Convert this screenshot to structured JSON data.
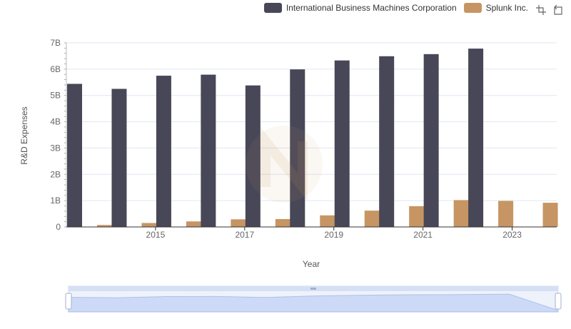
{
  "colors": {
    "ibm": "#484757",
    "splunk": "#c69563",
    "grid": "#e0e6f1",
    "axis": "#333333",
    "tick_text": "#666666"
  },
  "legend": {
    "series1": "International Business Machines Corporation",
    "series2": "Splunk Inc."
  },
  "toolbox": {
    "zoom_icon": "zoom-icon",
    "restore_icon": "restore-icon"
  },
  "chart_data": {
    "type": "bar",
    "xlabel": "Year",
    "ylabel": "R&D Expenses",
    "ylim": [
      0,
      7000000000
    ],
    "yticks": [
      "0",
      "1B",
      "2B",
      "3B",
      "4B",
      "5B",
      "6B",
      "7B"
    ],
    "categories": [
      "2014",
      "2015",
      "2016",
      "2017",
      "2018",
      "2019",
      "2020",
      "2021",
      "2022",
      "2023",
      "2024"
    ],
    "xtick_labels_shown": [
      "2015",
      "2017",
      "2019",
      "2021",
      "2023"
    ],
    "series": [
      {
        "name": "International Business Machines Corporation",
        "values": [
          5440000000,
          5250000000,
          5750000000,
          5790000000,
          5380000000,
          5990000000,
          6330000000,
          6490000000,
          6570000000,
          6780000000,
          null
        ]
      },
      {
        "name": "Splunk Inc.",
        "values": [
          75000000,
          150000000,
          210000000,
          290000000,
          300000000,
          440000000,
          620000000,
          790000000,
          1020000000,
          990000000,
          920000000
        ]
      }
    ],
    "grid": true,
    "legend_position": "top-right",
    "datazoom": {
      "range": [
        0,
        100
      ]
    }
  }
}
